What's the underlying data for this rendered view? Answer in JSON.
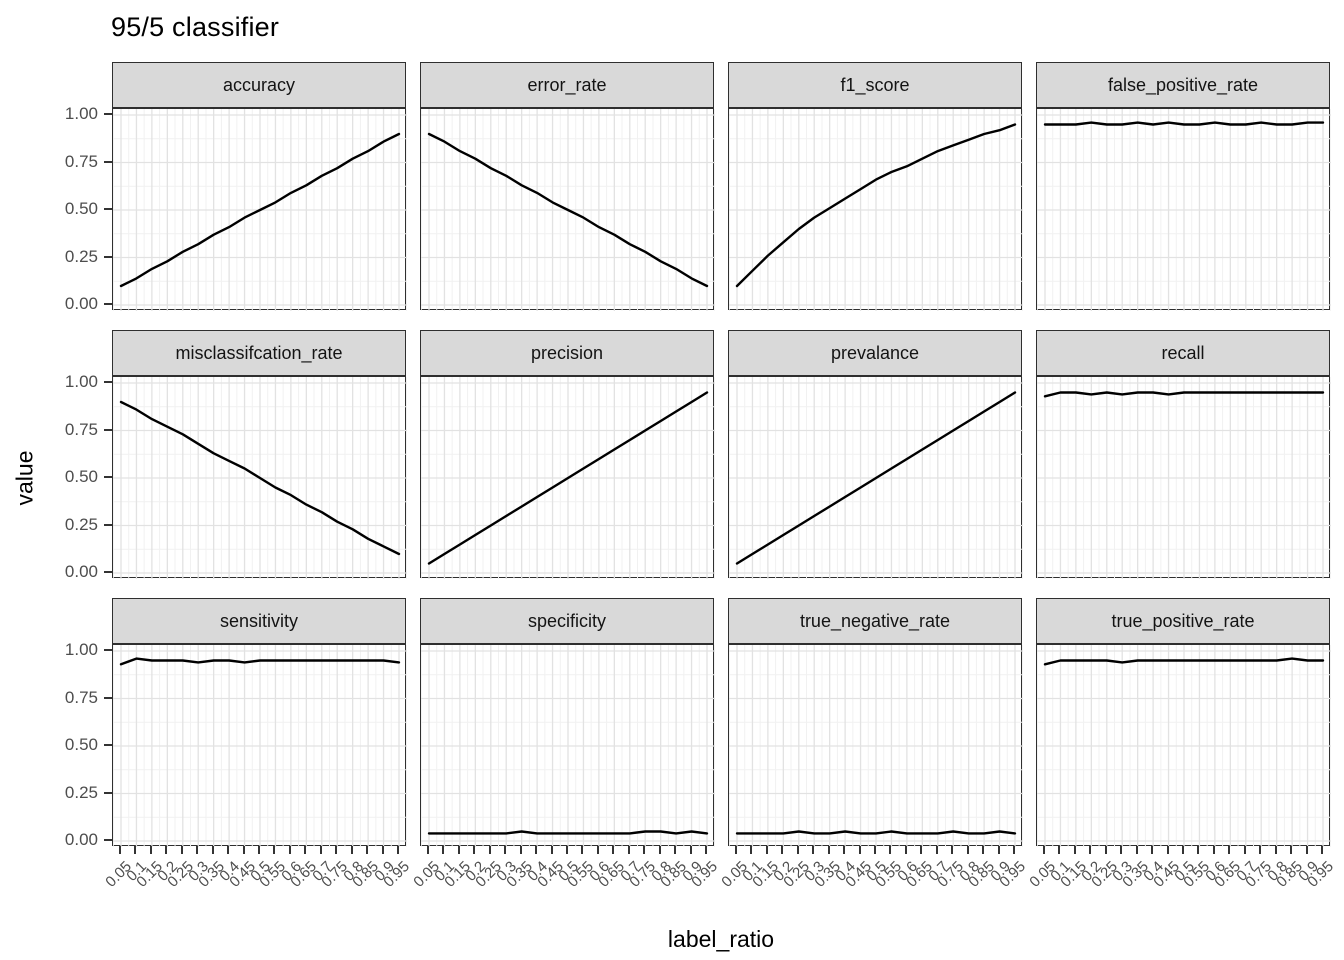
{
  "title": "95/5 classifier",
  "axes": {
    "x_title": "label_ratio",
    "y_title": "value",
    "y_tick_labels": [
      "0.00",
      "0.25",
      "0.50",
      "0.75",
      "1.00"
    ],
    "y_tick_values": [
      0,
      0.25,
      0.5,
      0.75,
      1.0
    ],
    "x_tick_labels": [
      "0.05",
      "0.1",
      "0.15",
      "0.2",
      "0.25",
      "0.3",
      "0.35",
      "0.4",
      "0.45",
      "0.5",
      "0.55",
      "0.6",
      "0.65",
      "0.7",
      "0.75",
      "0.8",
      "0.85",
      "0.9",
      "0.95"
    ]
  },
  "colors": {
    "line": "#000000",
    "strip_bg": "#d9d9d9",
    "panel_border": "#2f2f2f",
    "grid_major": "#e2e2e2",
    "grid_minor": "#f1f1f1",
    "axis_text": "#4d4d4d",
    "tick": "#333333",
    "text": "#000000",
    "background": "#ffffff"
  },
  "chart_data": {
    "type": "line",
    "title": "95/5 classifier",
    "xlabel": "label_ratio",
    "ylabel": "value",
    "ylim": [
      0,
      1
    ],
    "grid": true,
    "legend": "none",
    "layout": {
      "rows": 3,
      "cols": 4,
      "faceted": true
    },
    "x": [
      0.05,
      0.1,
      0.15,
      0.2,
      0.25,
      0.3,
      0.35,
      0.4,
      0.45,
      0.5,
      0.55,
      0.6,
      0.65,
      0.7,
      0.75,
      0.8,
      0.85,
      0.9,
      0.95
    ],
    "facets": [
      {
        "label": "accuracy",
        "values": [
          0.1,
          0.14,
          0.19,
          0.23,
          0.28,
          0.32,
          0.37,
          0.41,
          0.46,
          0.5,
          0.54,
          0.59,
          0.63,
          0.68,
          0.72,
          0.77,
          0.81,
          0.86,
          0.9
        ]
      },
      {
        "label": "error_rate",
        "values": [
          0.9,
          0.86,
          0.81,
          0.77,
          0.72,
          0.68,
          0.63,
          0.59,
          0.54,
          0.5,
          0.46,
          0.41,
          0.37,
          0.32,
          0.28,
          0.23,
          0.19,
          0.14,
          0.1
        ]
      },
      {
        "label": "f1_score",
        "values": [
          0.1,
          0.18,
          0.26,
          0.33,
          0.4,
          0.46,
          0.51,
          0.56,
          0.61,
          0.66,
          0.7,
          0.73,
          0.77,
          0.81,
          0.84,
          0.87,
          0.9,
          0.92,
          0.95
        ]
      },
      {
        "label": "false_positive_rate",
        "values": [
          0.95,
          0.95,
          0.95,
          0.96,
          0.95,
          0.95,
          0.96,
          0.95,
          0.96,
          0.95,
          0.95,
          0.96,
          0.95,
          0.95,
          0.96,
          0.95,
          0.95,
          0.96,
          0.96
        ]
      },
      {
        "label": "misclassifcation_rate",
        "values": [
          0.9,
          0.86,
          0.81,
          0.77,
          0.73,
          0.68,
          0.63,
          0.59,
          0.55,
          0.5,
          0.45,
          0.41,
          0.36,
          0.32,
          0.27,
          0.23,
          0.18,
          0.14,
          0.1
        ]
      },
      {
        "label": "precision",
        "values": [
          0.05,
          0.1,
          0.15,
          0.2,
          0.25,
          0.3,
          0.35,
          0.4,
          0.45,
          0.5,
          0.55,
          0.6,
          0.65,
          0.7,
          0.75,
          0.8,
          0.85,
          0.9,
          0.95
        ]
      },
      {
        "label": "prevalance",
        "values": [
          0.05,
          0.1,
          0.15,
          0.2,
          0.25,
          0.3,
          0.35,
          0.4,
          0.45,
          0.5,
          0.55,
          0.6,
          0.65,
          0.7,
          0.75,
          0.8,
          0.85,
          0.9,
          0.95
        ]
      },
      {
        "label": "recall",
        "values": [
          0.93,
          0.95,
          0.95,
          0.94,
          0.95,
          0.94,
          0.95,
          0.95,
          0.94,
          0.95,
          0.95,
          0.95,
          0.95,
          0.95,
          0.95,
          0.95,
          0.95,
          0.95,
          0.95
        ]
      },
      {
        "label": "sensitivity",
        "values": [
          0.93,
          0.96,
          0.95,
          0.95,
          0.95,
          0.94,
          0.95,
          0.95,
          0.94,
          0.95,
          0.95,
          0.95,
          0.95,
          0.95,
          0.95,
          0.95,
          0.95,
          0.95,
          0.94
        ]
      },
      {
        "label": "specificity",
        "values": [
          0.04,
          0.04,
          0.04,
          0.04,
          0.04,
          0.04,
          0.05,
          0.04,
          0.04,
          0.04,
          0.04,
          0.04,
          0.04,
          0.04,
          0.05,
          0.05,
          0.04,
          0.05,
          0.04
        ]
      },
      {
        "label": "true_negative_rate",
        "values": [
          0.04,
          0.04,
          0.04,
          0.04,
          0.05,
          0.04,
          0.04,
          0.05,
          0.04,
          0.04,
          0.05,
          0.04,
          0.04,
          0.04,
          0.05,
          0.04,
          0.04,
          0.05,
          0.04
        ]
      },
      {
        "label": "true_positive_rate",
        "values": [
          0.93,
          0.95,
          0.95,
          0.95,
          0.95,
          0.94,
          0.95,
          0.95,
          0.95,
          0.95,
          0.95,
          0.95,
          0.95,
          0.95,
          0.95,
          0.95,
          0.96,
          0.95,
          0.95
        ]
      }
    ]
  }
}
